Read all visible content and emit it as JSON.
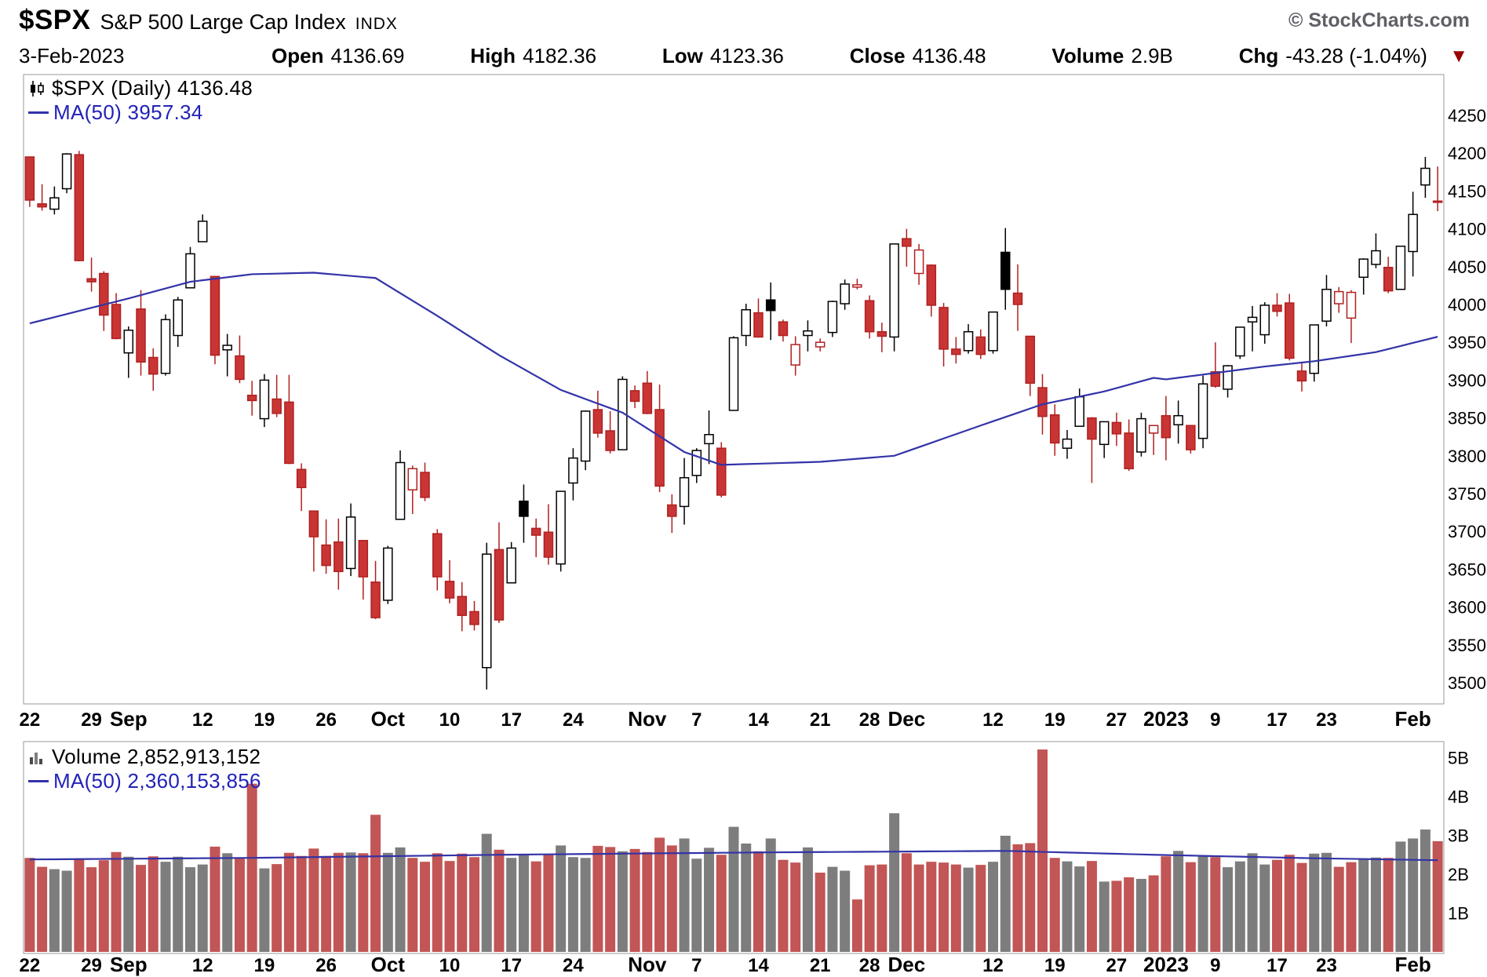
{
  "header": {
    "symbol": "$SPX",
    "name": "S&P 500 Large Cap Index",
    "exchange": "INDX",
    "watermark": "© StockCharts.com",
    "date": "3-Feb-2023",
    "quote": [
      {
        "label": "Open",
        "value": "4136.69"
      },
      {
        "label": "High",
        "value": "4182.36"
      },
      {
        "label": "Low",
        "value": "4123.36"
      },
      {
        "label": "Close",
        "value": "4136.48"
      },
      {
        "label": "Volume",
        "value": "2.9B"
      },
      {
        "label": "Chg",
        "value": "-43.28 (-1.04%)"
      }
    ]
  },
  "icons": {
    "chg_down": "▼"
  },
  "price_panel": {
    "legend_main": "$SPX (Daily) 4136.48",
    "legend_ma": "MA(50) 3957.34"
  },
  "volume_panel": {
    "legend_main": "Volume 2,852,913,152",
    "legend_ma": "MA(50) 2,360,153,856"
  },
  "chart_data": {
    "type": "candlestick+volume",
    "symbol": "$SPX",
    "timeframe": "Daily",
    "title": "$SPX S&P 500 Large Cap Index INDX",
    "grid": false,
    "legend_position": "top-left",
    "price_axis": {
      "min": 3500,
      "max": 4250,
      "ticks": [
        4250,
        4200,
        4150,
        4100,
        4050,
        4000,
        3950,
        3900,
        3850,
        3800,
        3750,
        3700,
        3650,
        3600,
        3550,
        3500
      ]
    },
    "volume_axis": {
      "unit": "billions",
      "ticks_billions": [
        1,
        2,
        3,
        4,
        5
      ]
    },
    "x_labels": [
      {
        "label": "22",
        "date": "2022-08-22",
        "major": false
      },
      {
        "label": "29",
        "date": "2022-08-29",
        "major": false
      },
      {
        "label": "Sep",
        "date": "2022-09-01",
        "major": true
      },
      {
        "label": "12",
        "date": "2022-09-12",
        "major": false
      },
      {
        "label": "19",
        "date": "2022-09-19",
        "major": false
      },
      {
        "label": "26",
        "date": "2022-09-26",
        "major": false
      },
      {
        "label": "Oct",
        "date": "2022-10-03",
        "major": true
      },
      {
        "label": "10",
        "date": "2022-10-10",
        "major": false
      },
      {
        "label": "17",
        "date": "2022-10-17",
        "major": false
      },
      {
        "label": "24",
        "date": "2022-10-24",
        "major": false
      },
      {
        "label": "Nov",
        "date": "2022-11-01",
        "major": true
      },
      {
        "label": "7",
        "date": "2022-11-07",
        "major": false
      },
      {
        "label": "14",
        "date": "2022-11-14",
        "major": false
      },
      {
        "label": "21",
        "date": "2022-11-21",
        "major": false
      },
      {
        "label": "28",
        "date": "2022-11-28",
        "major": false
      },
      {
        "label": "Dec",
        "date": "2022-12-01",
        "major": true
      },
      {
        "label": "12",
        "date": "2022-12-12",
        "major": false
      },
      {
        "label": "19",
        "date": "2022-12-19",
        "major": false
      },
      {
        "label": "27",
        "date": "2022-12-27",
        "major": false
      },
      {
        "label": "2023",
        "date": "2023-01-03",
        "major": true
      },
      {
        "label": "9",
        "date": "2023-01-09",
        "major": false
      },
      {
        "label": "17",
        "date": "2023-01-17",
        "major": false
      },
      {
        "label": "23",
        "date": "2023-01-23",
        "major": false
      },
      {
        "label": "Feb",
        "date": "2023-02-01",
        "major": true
      }
    ],
    "candles": [
      [
        "2022-08-22",
        4195,
        4195,
        4129,
        4138,
        2.42
      ],
      [
        "2022-08-23",
        4133,
        4159,
        4124,
        4129,
        2.19
      ],
      [
        "2022-08-24",
        4126,
        4156,
        4119,
        4141,
        2.13
      ],
      [
        "2022-08-25",
        4153,
        4200,
        4147,
        4199,
        2.09
      ],
      [
        "2022-08-26",
        4198,
        4203,
        4057,
        4058,
        2.39
      ],
      [
        "2022-08-29",
        4034,
        4062,
        4017,
        4030,
        2.18
      ],
      [
        "2022-08-30",
        4041,
        4044,
        3965,
        3986,
        2.36
      ],
      [
        "2022-08-31",
        4000,
        4015,
        3954,
        3955,
        2.57
      ],
      [
        "2022-09-01",
        3936,
        3971,
        3903,
        3966,
        2.45
      ],
      [
        "2022-09-02",
        3994,
        4019,
        3906,
        3924,
        2.24
      ],
      [
        "2022-09-06",
        3930,
        3942,
        3886,
        3908,
        2.46
      ],
      [
        "2022-09-07",
        3909,
        3987,
        3906,
        3980,
        2.32
      ],
      [
        "2022-09-08",
        3959,
        4010,
        3944,
        4006,
        2.45
      ],
      [
        "2022-09-09",
        4022,
        4076,
        4022,
        4067,
        2.18
      ],
      [
        "2022-09-12",
        4083,
        4119,
        4083,
        4110,
        2.25
      ],
      [
        "2022-09-13",
        4037,
        4037,
        3921,
        3933,
        2.71
      ],
      [
        "2022-09-14",
        3940,
        3961,
        3905,
        3946,
        2.54
      ],
      [
        "2022-09-15",
        3932,
        3959,
        3896,
        3901,
        2.41
      ],
      [
        "2022-09-16",
        3880,
        3899,
        3853,
        3873,
        4.33
      ],
      [
        "2022-09-19",
        3849,
        3908,
        3838,
        3900,
        2.15
      ],
      [
        "2022-09-20",
        3875,
        3907,
        3851,
        3856,
        2.26
      ],
      [
        "2022-09-21",
        3871,
        3907,
        3789,
        3790,
        2.55
      ],
      [
        "2022-09-22",
        3782,
        3790,
        3727,
        3758,
        2.47
      ],
      [
        "2022-09-23",
        3727,
        3727,
        3647,
        3693,
        2.66
      ],
      [
        "2022-09-26",
        3682,
        3716,
        3644,
        3655,
        2.47
      ],
      [
        "2022-09-27",
        3686,
        3717,
        3623,
        3647,
        2.55
      ],
      [
        "2022-09-28",
        3651,
        3737,
        3641,
        3719,
        2.56
      ],
      [
        "2022-09-29",
        3688,
        3688,
        3610,
        3640,
        2.54
      ],
      [
        "2022-09-30",
        3633,
        3661,
        3584,
        3586,
        3.53
      ],
      [
        "2022-10-03",
        3609,
        3681,
        3604,
        3678,
        2.55
      ],
      [
        "2022-10-04",
        3716,
        3807,
        3716,
        3791,
        2.69
      ],
      [
        "2022-10-05",
        3755,
        3787,
        3723,
        3783,
        2.42
      ],
      [
        "2022-10-06",
        3778,
        3791,
        3740,
        3745,
        2.32
      ],
      [
        "2022-10-07",
        3697,
        3703,
        3622,
        3640,
        2.54
      ],
      [
        "2022-10-10",
        3634,
        3662,
        3605,
        3612,
        2.34
      ],
      [
        "2022-10-11",
        3614,
        3633,
        3568,
        3589,
        2.53
      ],
      [
        "2022-10-12",
        3594,
        3608,
        3569,
        3577,
        2.44
      ],
      [
        "2022-10-13",
        3520,
        3685,
        3491,
        3670,
        3.04
      ],
      [
        "2022-10-14",
        3676,
        3712,
        3579,
        3583,
        2.63
      ],
      [
        "2022-10-17",
        3632,
        3686,
        3632,
        3678,
        2.42
      ],
      [
        "2022-10-18",
        3740,
        3762,
        3685,
        3720,
        2.49
      ],
      [
        "2022-10-19",
        3704,
        3717,
        3666,
        3695,
        2.33
      ],
      [
        "2022-10-20",
        3699,
        3736,
        3656,
        3666,
        2.52
      ],
      [
        "2022-10-21",
        3657,
        3753,
        3647,
        3753,
        2.74
      ],
      [
        "2022-10-24",
        3764,
        3810,
        3741,
        3797,
        2.44
      ],
      [
        "2022-10-25",
        3793,
        3860,
        3781,
        3859,
        2.42
      ],
      [
        "2022-10-26",
        3861,
        3886,
        3824,
        3830,
        2.73
      ],
      [
        "2022-10-27",
        3833,
        3859,
        3803,
        3807,
        2.7
      ],
      [
        "2022-10-28",
        3808,
        3905,
        3808,
        3901,
        2.59
      ],
      [
        "2022-10-31",
        3886,
        3893,
        3863,
        3872,
        2.65
      ],
      [
        "2022-11-01",
        3896,
        3912,
        3855,
        3856,
        2.57
      ],
      [
        "2022-11-02",
        3861,
        3894,
        3752,
        3760,
        2.94
      ],
      [
        "2022-11-03",
        3735,
        3749,
        3698,
        3720,
        2.74
      ],
      [
        "2022-11-04",
        3733,
        3797,
        3709,
        3771,
        2.92
      ],
      [
        "2022-11-07",
        3774,
        3810,
        3764,
        3807,
        2.4
      ],
      [
        "2022-11-08",
        3816,
        3860,
        3789,
        3828,
        2.68
      ],
      [
        "2022-11-09",
        3810,
        3818,
        3745,
        3748,
        2.5
      ],
      [
        "2022-11-10",
        3860,
        3958,
        3860,
        3956,
        3.22
      ],
      [
        "2022-11-11",
        3959,
        4001,
        3945,
        3993,
        2.79
      ],
      [
        "2022-11-14",
        3989,
        4008,
        3956,
        3957,
        2.59
      ],
      [
        "2022-11-15",
        4006,
        4029,
        3953,
        3992,
        2.92
      ],
      [
        "2022-11-16",
        3977,
        3980,
        3951,
        3959,
        2.37
      ],
      [
        "2022-11-17",
        3920,
        3958,
        3906,
        3947,
        2.3
      ],
      [
        "2022-11-18",
        3959,
        3979,
        3938,
        3965,
        2.69
      ],
      [
        "2022-11-21",
        3944,
        3955,
        3938,
        3950,
        2.04
      ],
      [
        "2022-11-22",
        3963,
        4005,
        3957,
        4004,
        2.19
      ],
      [
        "2022-11-23",
        4001,
        4033,
        3993,
        4027,
        2.09
      ],
      [
        "2022-11-25",
        4023,
        4034,
        4020,
        4026,
        1.35
      ],
      [
        "2022-11-28",
        4005,
        4012,
        3955,
        3964,
        2.23
      ],
      [
        "2022-11-29",
        3964,
        3976,
        3937,
        3958,
        2.25
      ],
      [
        "2022-11-30",
        3957,
        4080,
        3938,
        4080,
        3.57
      ],
      [
        "2022-12-01",
        4087,
        4100,
        4050,
        4077,
        2.54
      ],
      [
        "2022-12-02",
        4041,
        4080,
        4026,
        4072,
        2.25
      ],
      [
        "2022-12-05",
        4052,
        4053,
        3984,
        3999,
        2.32
      ],
      [
        "2022-12-06",
        3996,
        4002,
        3918,
        3941,
        2.3
      ],
      [
        "2022-12-07",
        3941,
        3957,
        3922,
        3934,
        2.25
      ],
      [
        "2022-12-08",
        3939,
        3974,
        3935,
        3964,
        2.17
      ],
      [
        "2022-12-09",
        3957,
        3967,
        3928,
        3934,
        2.24
      ],
      [
        "2022-12-12",
        3939,
        3990,
        3935,
        3990,
        2.32
      ],
      [
        "2022-12-13",
        4069,
        4101,
        3993,
        4020,
        2.99
      ],
      [
        "2022-12-14",
        4015,
        4053,
        3965,
        4000,
        2.77
      ],
      [
        "2022-12-15",
        3958,
        3958,
        3879,
        3896,
        2.8
      ],
      [
        "2022-12-16",
        3890,
        3908,
        3828,
        3852,
        5.21
      ],
      [
        "2022-12-19",
        3854,
        3868,
        3800,
        3817,
        2.42
      ],
      [
        "2022-12-20",
        3810,
        3834,
        3796,
        3822,
        2.33
      ],
      [
        "2022-12-21",
        3839,
        3889,
        3839,
        3878,
        2.2
      ],
      [
        "2022-12-22",
        3850,
        3851,
        3764,
        3822,
        2.34
      ],
      [
        "2022-12-23",
        3815,
        3845,
        3797,
        3845,
        1.81
      ],
      [
        "2022-12-27",
        3844,
        3857,
        3813,
        3829,
        1.83
      ],
      [
        "2022-12-28",
        3830,
        3848,
        3780,
        3783,
        1.92
      ],
      [
        "2022-12-29",
        3805,
        3857,
        3799,
        3849,
        1.88
      ],
      [
        "2022-12-30",
        3830,
        3840,
        3801,
        3840,
        1.97
      ],
      [
        "2023-01-03",
        3853,
        3879,
        3794,
        3824,
        2.46
      ],
      [
        "2023-01-04",
        3841,
        3873,
        3816,
        3853,
        2.6
      ],
      [
        "2023-01-05",
        3840,
        3840,
        3803,
        3808,
        2.31
      ],
      [
        "2023-01-06",
        3823,
        3906,
        3810,
        3895,
        2.46
      ],
      [
        "2023-01-09",
        3911,
        3950,
        3890,
        3892,
        2.44
      ],
      [
        "2023-01-10",
        3888,
        3920,
        3877,
        3919,
        2.18
      ],
      [
        "2023-01-11",
        3932,
        3970,
        3928,
        3970,
        2.33
      ],
      [
        "2023-01-12",
        3977,
        3998,
        3938,
        3983,
        2.54
      ],
      [
        "2023-01-13",
        3960,
        4003,
        3948,
        3999,
        2.25
      ],
      [
        "2023-01-17",
        3999,
        4015,
        3984,
        3991,
        2.37
      ],
      [
        "2023-01-18",
        4002,
        4014,
        3926,
        3929,
        2.5
      ],
      [
        "2023-01-19",
        3912,
        3922,
        3885,
        3899,
        2.29
      ],
      [
        "2023-01-20",
        3909,
        3972,
        3898,
        3973,
        2.53
      ],
      [
        "2023-01-23",
        3978,
        4039,
        3971,
        4020,
        2.55
      ],
      [
        "2023-01-24",
        4001,
        4023,
        3989,
        4017,
        2.19
      ],
      [
        "2023-01-25",
        3982,
        4019,
        3949,
        4016,
        2.31
      ],
      [
        "2023-01-26",
        4036,
        4061,
        4013,
        4060,
        2.41
      ],
      [
        "2023-01-27",
        4053,
        4094,
        4048,
        4071,
        2.43
      ],
      [
        "2023-01-30",
        4049,
        4063,
        4015,
        4018,
        2.42
      ],
      [
        "2023-01-31",
        4020,
        4077,
        4020,
        4077,
        2.84
      ],
      [
        "2023-02-01",
        4070,
        4149,
        4037,
        4119,
        2.92
      ],
      [
        "2023-02-02",
        4158,
        4195,
        4141,
        4180,
        3.15
      ],
      [
        "2023-02-03",
        4136.69,
        4182.36,
        4123.36,
        4136.48,
        2.85
      ]
    ],
    "ma50_price": [
      [
        "2022-08-22",
        3975
      ],
      [
        "2022-09-01",
        4008
      ],
      [
        "2022-09-09",
        4030
      ],
      [
        "2022-09-16",
        4040
      ],
      [
        "2022-09-23",
        4042
      ],
      [
        "2022-09-30",
        4035
      ],
      [
        "2022-10-07",
        3985
      ],
      [
        "2022-10-14",
        3933
      ],
      [
        "2022-10-21",
        3887
      ],
      [
        "2022-10-28",
        3857
      ],
      [
        "2022-11-04",
        3805
      ],
      [
        "2022-11-09",
        3788
      ],
      [
        "2022-11-15",
        3790
      ],
      [
        "2022-11-21",
        3792
      ],
      [
        "2022-11-30",
        3800
      ],
      [
        "2022-12-09",
        3840
      ],
      [
        "2022-12-16",
        3868
      ],
      [
        "2022-12-23",
        3885
      ],
      [
        "2022-12-30",
        3903
      ],
      [
        "2023-01-03",
        3901
      ],
      [
        "2023-01-13",
        3918
      ],
      [
        "2023-01-20",
        3925
      ],
      [
        "2023-01-27",
        3937
      ],
      [
        "2023-02-03",
        3957.34
      ]
    ],
    "ma50_volume_billions": [
      [
        "2022-08-22",
        2.38
      ],
      [
        "2022-09-16",
        2.42
      ],
      [
        "2022-10-14",
        2.5
      ],
      [
        "2022-11-14",
        2.56
      ],
      [
        "2022-12-13",
        2.6
      ],
      [
        "2022-12-30",
        2.5
      ],
      [
        "2023-01-20",
        2.41
      ],
      [
        "2023-02-03",
        2.36
      ]
    ],
    "colors": {
      "up_outline": "#000000",
      "down_outline": "#b02020",
      "down_fill": "#c93535",
      "up_fill": "#ffffff",
      "ma_line": "#3333a8",
      "vol_up": "#7d7d7d",
      "vol_down": "#c25555",
      "panel_border": "#9a9a9a"
    }
  }
}
